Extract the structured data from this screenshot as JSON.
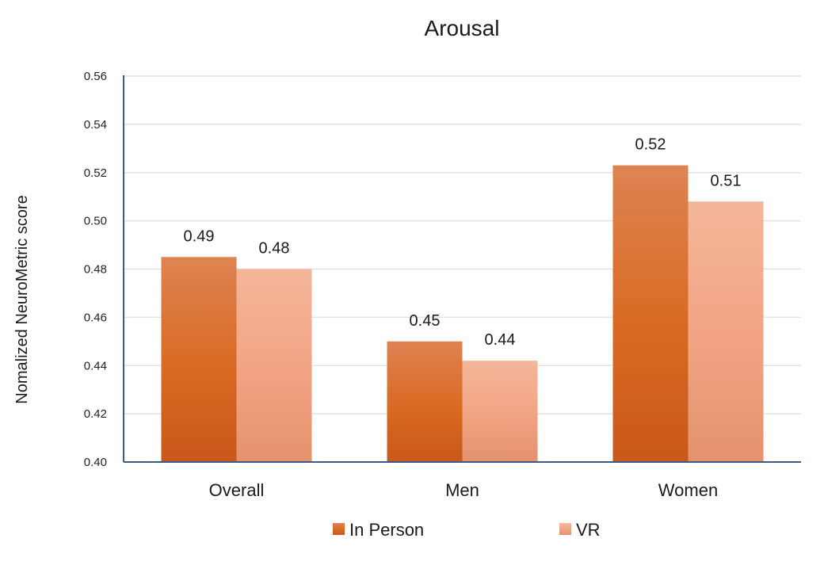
{
  "chart_data": {
    "type": "bar",
    "title": "Arousal",
    "xlabel": "",
    "ylabel": "Nomalized NeuroMetric score",
    "ylim": [
      0.4,
      0.56
    ],
    "yticks": [
      "0.40",
      "0.42",
      "0.44",
      "0.46",
      "0.48",
      "0.50",
      "0.52",
      "0.54",
      "0.56"
    ],
    "categories": [
      "Overall",
      "Men",
      "Women"
    ],
    "series": [
      {
        "name": "In Person",
        "values": [
          0.485,
          0.45,
          0.523
        ],
        "labels": [
          "0.49",
          "0.45",
          "0.52"
        ],
        "color": "#d96a28"
      },
      {
        "name": "VR",
        "values": [
          0.48,
          0.442,
          0.508
        ],
        "labels": [
          "0.48",
          "0.44",
          "0.51"
        ],
        "color": "#f2a27e"
      }
    ],
    "grid": true,
    "legend": "bottom"
  }
}
